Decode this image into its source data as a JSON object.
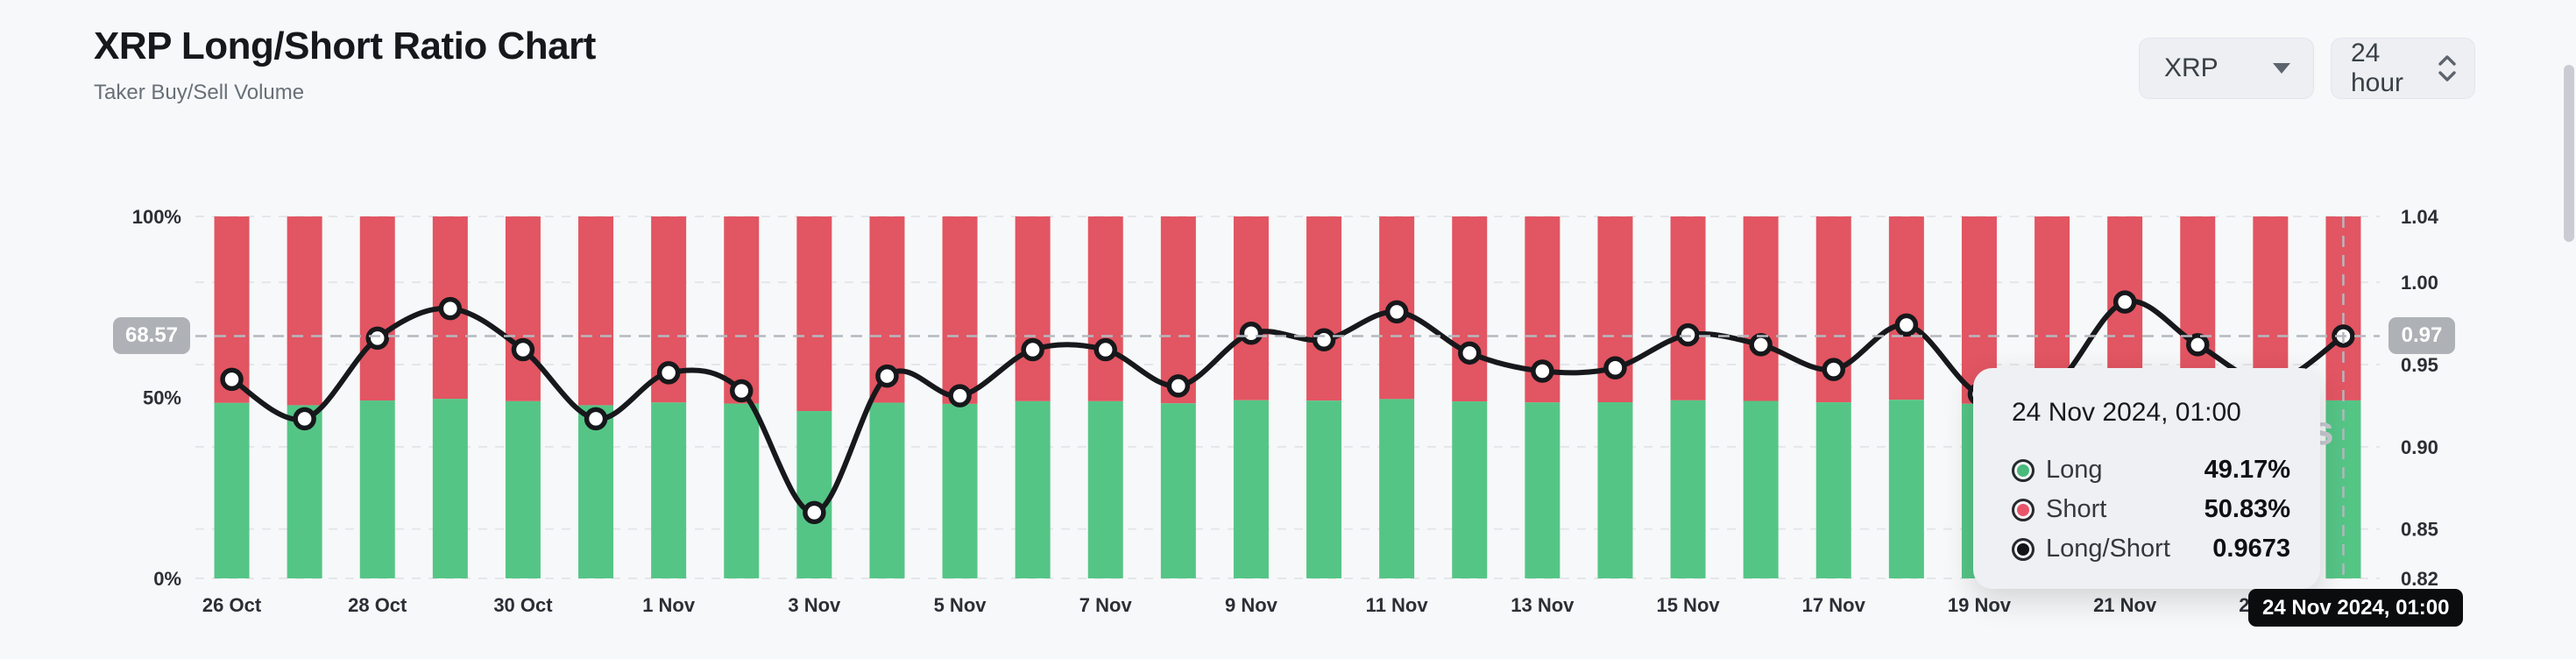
{
  "header": {
    "title": "XRP Long/Short Ratio Chart",
    "subtitle": "Taker Buy/Sell Volume"
  },
  "controls": {
    "symbol_select": {
      "value": "XRP"
    },
    "interval_select": {
      "value": "24 hour"
    }
  },
  "crosshair": {
    "left_axis_value": "68.57",
    "right_axis_value": "0.97",
    "x_axis_label": "24 Nov 2024, 01:00",
    "hovered_ratio": 0.9673
  },
  "tooltip": {
    "title": "24 Nov 2024, 01:00",
    "rows": [
      {
        "label": "Long",
        "value": "49.17%",
        "color": "#4aba7c"
      },
      {
        "label": "Short",
        "value": "50.83%",
        "color": "#e8556a"
      },
      {
        "label": "Long/Short",
        "value": "0.9673",
        "color": "#121417"
      }
    ]
  },
  "watermark_fragment": "s",
  "chart_data": {
    "type": "bar+line",
    "title": "XRP Long/Short Ratio Chart",
    "subtitle": "Taker Buy/Sell Volume",
    "stacked_bars_total": 100,
    "categories": [
      "26 Oct",
      "27 Oct",
      "28 Oct",
      "29 Oct",
      "30 Oct",
      "31 Oct",
      "1 Nov",
      "2 Nov",
      "3 Nov",
      "4 Nov",
      "5 Nov",
      "6 Nov",
      "7 Nov",
      "8 Nov",
      "9 Nov",
      "10 Nov",
      "11 Nov",
      "12 Nov",
      "13 Nov",
      "14 Nov",
      "15 Nov",
      "16 Nov",
      "17 Nov",
      "18 Nov",
      "19 Nov",
      "20 Nov",
      "21 Nov",
      "22 Nov",
      "23 Nov",
      "24 Nov"
    ],
    "x_tick_labels": [
      "26 Oct",
      "28 Oct",
      "30 Oct",
      "1 Nov",
      "3 Nov",
      "5 Nov",
      "7 Nov",
      "9 Nov",
      "11 Nov",
      "13 Nov",
      "15 Nov",
      "17 Nov",
      "19 Nov",
      "21 Nov",
      "23 Nov"
    ],
    "series": [
      {
        "name": "Long",
        "type": "bar",
        "unit": "%",
        "color": "#55c586",
        "values": [
          48.48,
          47.84,
          49.14,
          49.6,
          48.95,
          47.84,
          48.59,
          48.29,
          46.24,
          48.53,
          48.21,
          48.95,
          48.95,
          48.37,
          49.21,
          49.11,
          49.55,
          48.9,
          48.61,
          48.67,
          49.19,
          49.03,
          48.64,
          49.34,
          48.24,
          48.35,
          49.7,
          49.03,
          48.43,
          49.17
        ]
      },
      {
        "name": "Short",
        "type": "bar",
        "unit": "%",
        "color": "#e25562",
        "values": [
          51.52,
          52.16,
          50.86,
          50.4,
          51.05,
          52.16,
          51.41,
          51.71,
          53.76,
          51.47,
          51.79,
          51.05,
          51.05,
          51.63,
          50.79,
          50.89,
          50.45,
          51.1,
          51.39,
          51.33,
          50.81,
          50.97,
          51.36,
          50.66,
          51.76,
          51.65,
          50.3,
          50.97,
          51.57,
          50.83
        ]
      },
      {
        "name": "Long/Short",
        "type": "line",
        "color": "#17181b",
        "marker": "white-circle",
        "values": [
          0.941,
          0.917,
          0.966,
          0.984,
          0.959,
          0.917,
          0.945,
          0.934,
          0.86,
          0.943,
          0.931,
          0.959,
          0.959,
          0.937,
          0.969,
          0.965,
          0.982,
          0.957,
          0.946,
          0.948,
          0.968,
          0.962,
          0.947,
          0.974,
          0.932,
          0.936,
          0.988,
          0.962,
          0.939,
          0.9673
        ]
      }
    ],
    "left_axis": {
      "tick_labels": [
        "100%",
        "50%",
        "0%"
      ],
      "tick_values": [
        100,
        50,
        0
      ],
      "range": [
        0,
        100
      ]
    },
    "right_axis": {
      "tick_labels": [
        "1.04",
        "1.00",
        "0.95",
        "0.90",
        "0.85",
        "0.82"
      ],
      "tick_values": [
        1.04,
        1.0,
        0.95,
        0.9,
        0.85,
        0.82
      ],
      "range": [
        0.82,
        1.04
      ]
    },
    "grid": {
      "horizontal": "dashed",
      "color": "#e4e6ea"
    },
    "hovered_point": {
      "category": "24 Nov",
      "ratio": 0.9673,
      "long": 49.17,
      "short": 50.83
    },
    "legend_position": "none"
  }
}
